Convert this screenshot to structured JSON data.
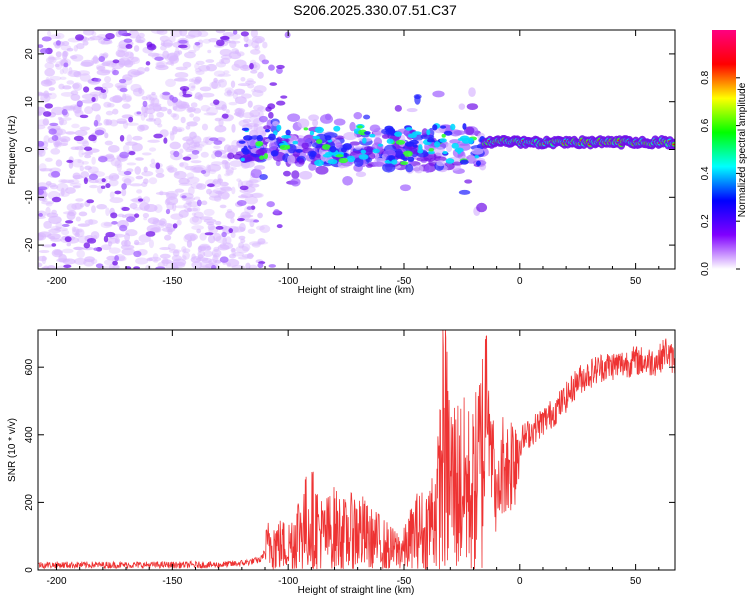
{
  "figure_title": "S206.2025.330.07.51.C37",
  "chart_data": [
    {
      "type": "heatmap",
      "title": "S206.2025.330.07.51.C37",
      "xlabel": "Height of straight line (km)",
      "ylabel": "Frequency (Hz)",
      "xlim": [
        -208,
        67
      ],
      "ylim": [
        -25,
        25
      ],
      "xticks": [
        -200,
        -150,
        -100,
        -50,
        0,
        50
      ],
      "yticks": [
        -20,
        -10,
        0,
        10,
        20
      ],
      "colorbar": {
        "label": "Normalized spectral amplitude",
        "range": [
          0,
          1
        ],
        "ticks": [
          0.0,
          0.2,
          0.4,
          0.6,
          0.8
        ],
        "colors": [
          "#ffffff",
          "#8000ff",
          "#0000ff",
          "#00ffff",
          "#00ff00",
          "#ffff00",
          "#ff0000",
          "#ff0080"
        ]
      },
      "regions": [
        {
          "name": "broadband noise",
          "x_range": [
            -208,
            -110
          ],
          "y_range": [
            -25,
            25
          ],
          "amplitude": 0.08
        },
        {
          "name": "scattered band",
          "x_range": [
            -120,
            -15
          ],
          "y_range": [
            -15,
            12
          ],
          "amplitude": 0.25
        },
        {
          "name": "narrowband signal",
          "x_range": [
            -15,
            67
          ],
          "y_range": [
            0,
            3
          ],
          "amplitude": 0.9
        }
      ]
    },
    {
      "type": "line",
      "xlabel": "Height of straight line (km)",
      "ylabel": "SNR (10 * v/v)",
      "xlim": [
        -208,
        67
      ],
      "ylim": [
        0,
        710
      ],
      "xticks": [
        -200,
        -150,
        -100,
        -50,
        0,
        50
      ],
      "yticks": [
        0,
        200,
        400,
        600
      ],
      "color": "#ee3333",
      "series": [
        {
          "name": "SNR",
          "x": [
            -208,
            -190,
            -170,
            -150,
            -130,
            -120,
            -112,
            -108,
            -100,
            -95,
            -90,
            -85,
            -80,
            -75,
            -70,
            -65,
            -60,
            -55,
            -50,
            -45,
            -40,
            -35,
            -33,
            -30,
            -25,
            -20,
            -16,
            -14,
            -12,
            -10,
            -7,
            -5,
            -3,
            0,
            5,
            10,
            15,
            20,
            25,
            30,
            35,
            40,
            45,
            50,
            55,
            60,
            63,
            65,
            67
          ],
          "y": [
            15,
            15,
            15,
            15,
            15,
            20,
            30,
            80,
            70,
            120,
            150,
            100,
            120,
            100,
            120,
            90,
            80,
            60,
            60,
            110,
            120,
            200,
            400,
            260,
            250,
            230,
            340,
            650,
            350,
            190,
            330,
            300,
            340,
            380,
            410,
            440,
            470,
            510,
            560,
            580,
            600,
            605,
            610,
            620,
            615,
            620,
            650,
            630,
            620
          ]
        }
      ]
    }
  ]
}
